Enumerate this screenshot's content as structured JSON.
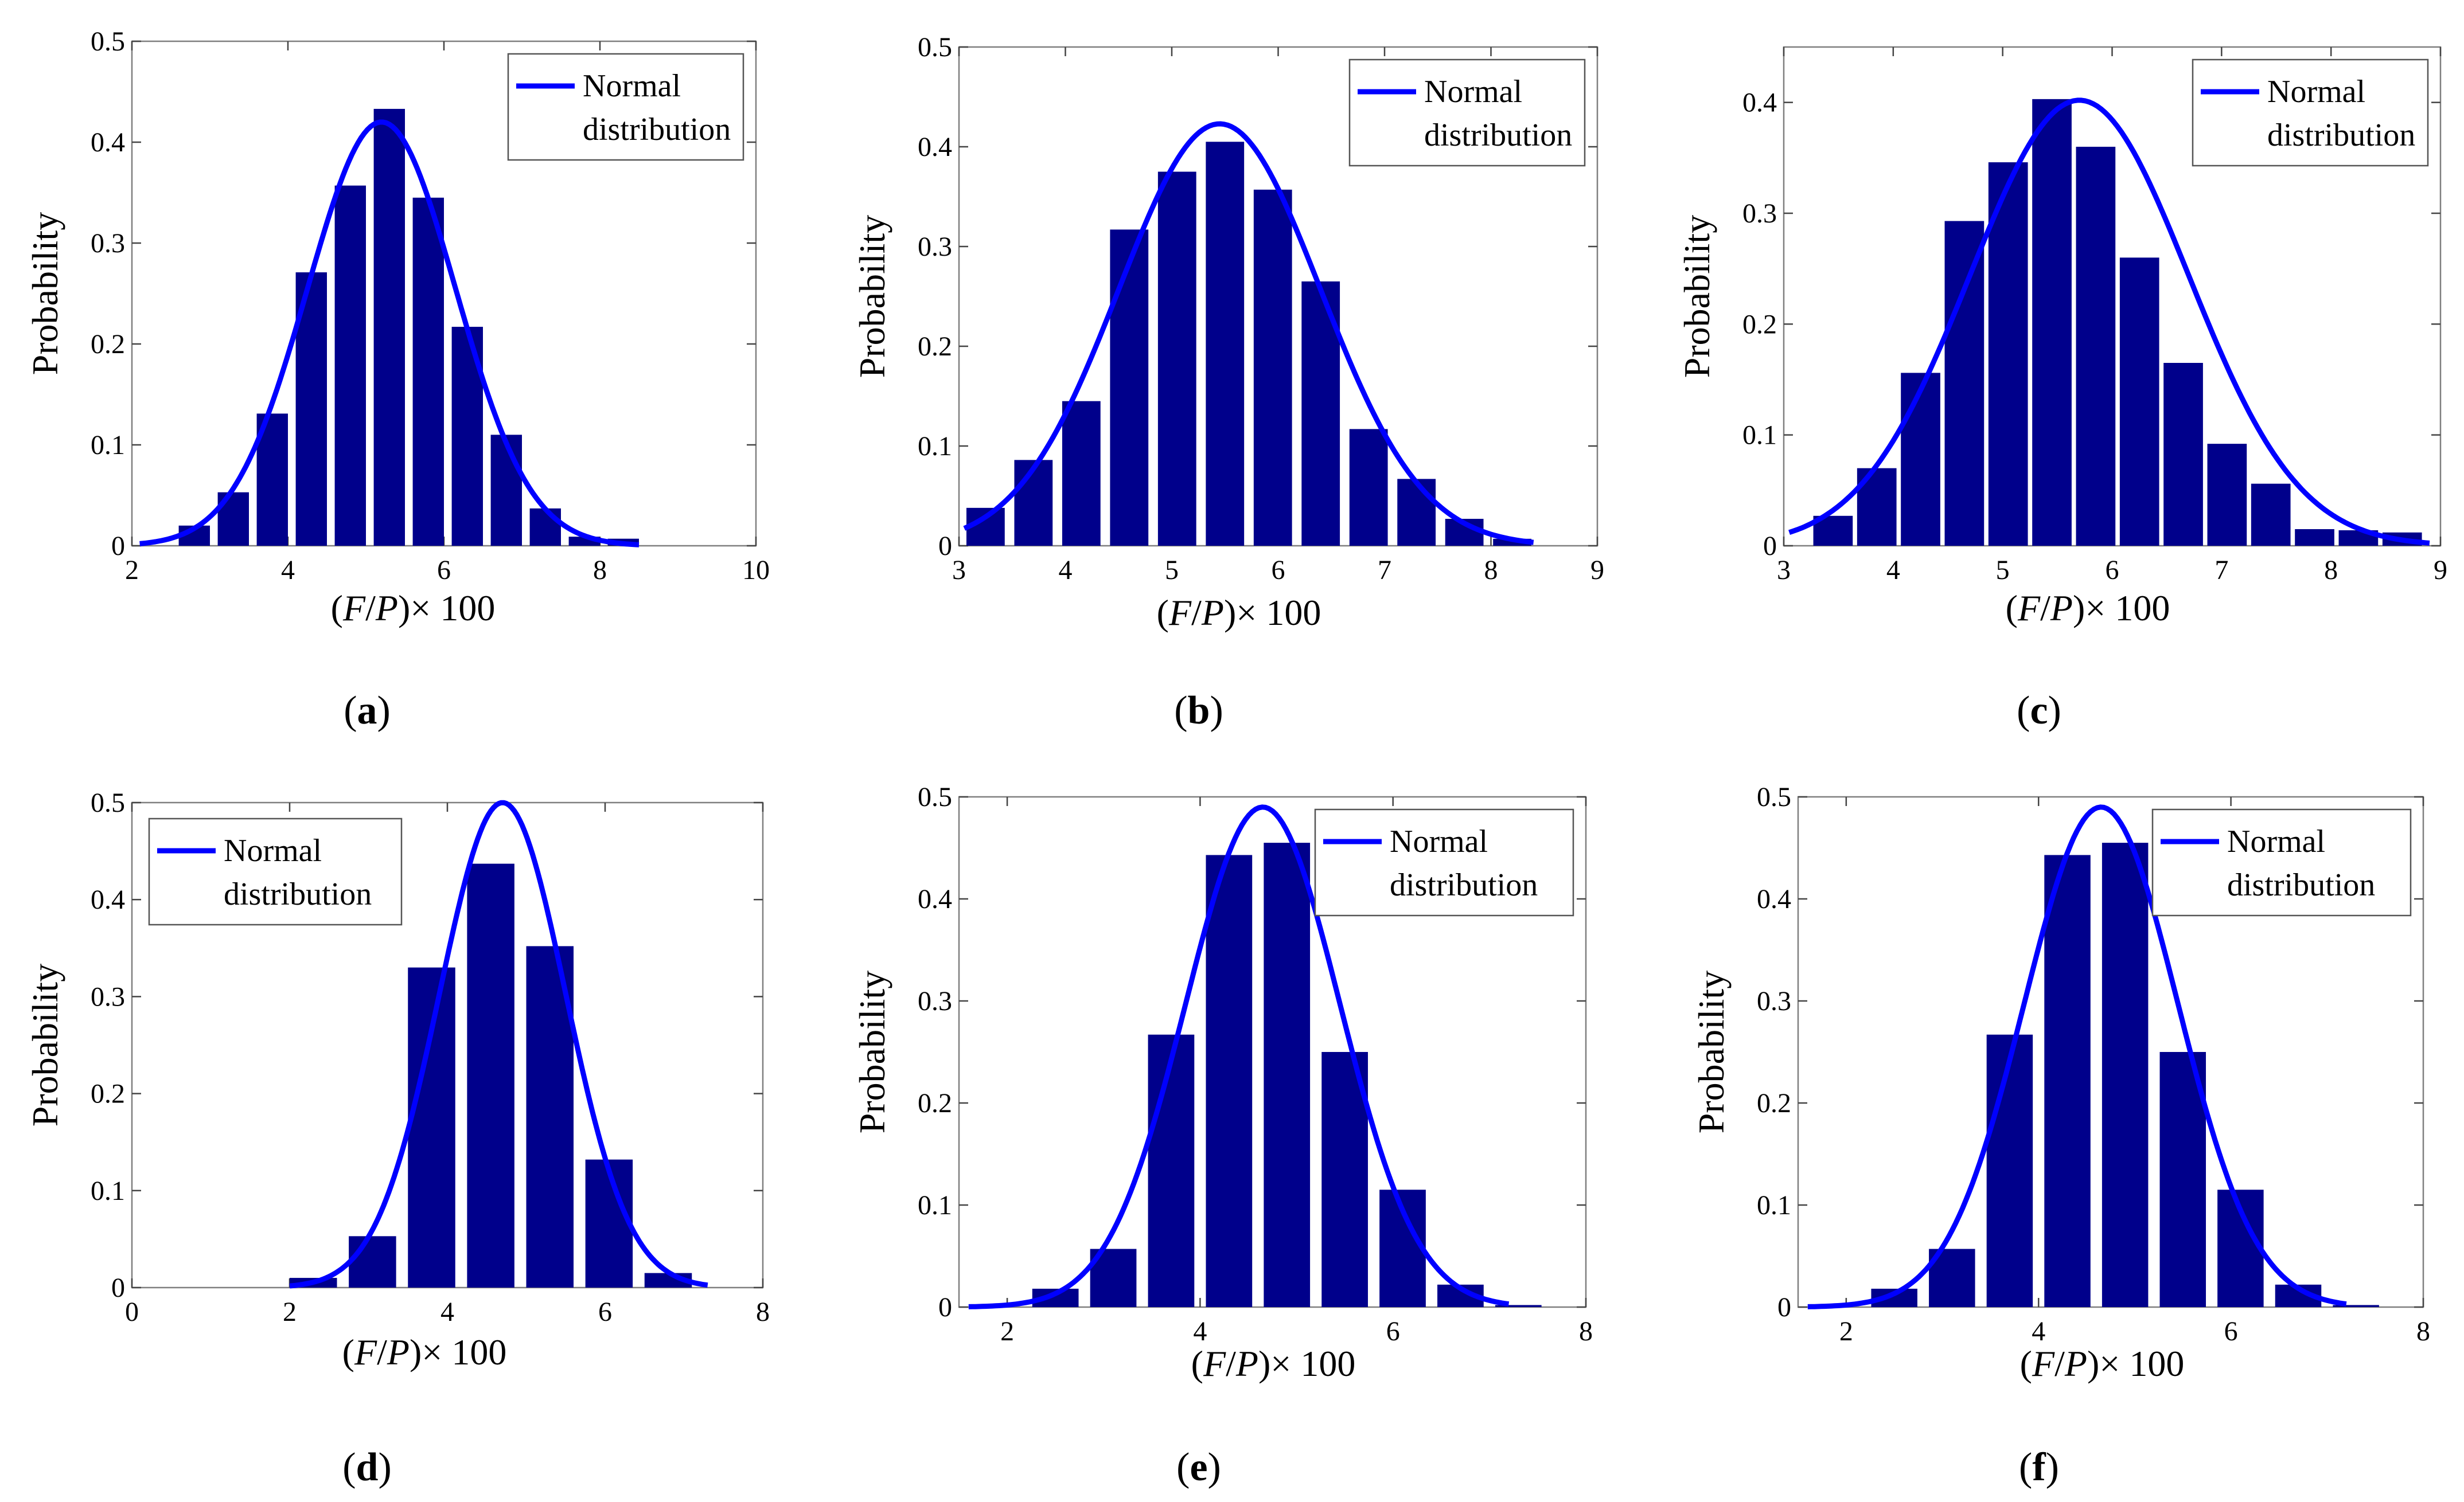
{
  "chart_data": [
    {
      "id": "a",
      "type": "bar",
      "panel_label": "a",
      "xlabel": "(F/P)× 100",
      "ylabel": "Probability",
      "xlim": [
        2,
        10
      ],
      "ylim": [
        0,
        0.5
      ],
      "xticks": [
        2,
        4,
        6,
        8,
        10
      ],
      "yticks": [
        0,
        0.1,
        0.2,
        0.3,
        0.4,
        0.5
      ],
      "legend": {
        "entries": [
          "Normal",
          "distribution"
        ],
        "position": "top-right"
      },
      "bar_width": 0.4,
      "series": [
        {
          "name": "histogram",
          "x": [
            2.8,
            3.3,
            3.8,
            4.3,
            4.8,
            5.3,
            5.8,
            6.3,
            6.8,
            7.3,
            7.8,
            8.3
          ],
          "values": [
            0.02,
            0.053,
            0.131,
            0.271,
            0.357,
            0.433,
            0.345,
            0.217,
            0.11,
            0.037,
            0.009,
            0.007
          ]
        },
        {
          "name": "Normal distribution",
          "kind": "normal",
          "mean": 5.2,
          "sd": 0.95,
          "scale": 0.42,
          "range": [
            2.1,
            8.5
          ]
        }
      ]
    },
    {
      "id": "b",
      "type": "bar",
      "panel_label": "b",
      "xlabel": "(F/P)× 100",
      "ylabel": "Probability",
      "xlim": [
        3,
        9
      ],
      "ylim": [
        0,
        0.5
      ],
      "xticks": [
        3,
        4,
        5,
        6,
        7,
        8,
        9
      ],
      "yticks": [
        0,
        0.1,
        0.2,
        0.3,
        0.4,
        0.5
      ],
      "legend": {
        "entries": [
          "Normal",
          "distribution"
        ],
        "position": "top-right"
      },
      "bar_width": 0.36,
      "series": [
        {
          "name": "histogram",
          "x": [
            3.25,
            3.7,
            4.15,
            4.6,
            5.05,
            5.5,
            5.95,
            6.4,
            6.85,
            7.3,
            7.75,
            8.2
          ],
          "values": [
            0.038,
            0.086,
            0.145,
            0.317,
            0.375,
            0.405,
            0.357,
            0.265,
            0.117,
            0.067,
            0.027,
            0.007
          ]
        },
        {
          "name": "Normal distribution",
          "kind": "normal",
          "mean": 5.45,
          "sd": 0.95,
          "scale": 0.423,
          "range": [
            3.05,
            8.4
          ]
        }
      ]
    },
    {
      "id": "c",
      "type": "bar",
      "panel_label": "c",
      "xlabel": "(F/P)× 100",
      "ylabel": "Probability",
      "xlim": [
        3,
        9
      ],
      "ylim": [
        0,
        0.45
      ],
      "xticks": [
        3,
        4,
        5,
        6,
        7,
        8,
        9
      ],
      "yticks": [
        0,
        0.1,
        0.2,
        0.3,
        0.4
      ],
      "legend": {
        "entries": [
          "Normal",
          "distribution"
        ],
        "position": "top-right"
      },
      "bar_width": 0.36,
      "series": [
        {
          "name": "histogram",
          "x": [
            3.45,
            3.85,
            4.25,
            4.65,
            5.05,
            5.45,
            5.85,
            6.25,
            6.65,
            7.05,
            7.45,
            7.85,
            8.25,
            8.65
          ],
          "values": [
            0.027,
            0.07,
            0.156,
            0.293,
            0.346,
            0.403,
            0.36,
            0.26,
            0.165,
            0.092,
            0.056,
            0.015,
            0.014,
            0.012
          ]
        },
        {
          "name": "Normal distribution",
          "kind": "normal",
          "mean": 5.7,
          "sd": 1.0,
          "scale": 0.402,
          "range": [
            3.05,
            8.9
          ]
        }
      ]
    },
    {
      "id": "d",
      "type": "bar",
      "panel_label": "d",
      "xlabel": "(F/P)× 100",
      "ylabel": "Probability",
      "xlim": [
        0,
        8
      ],
      "ylim": [
        0,
        0.5
      ],
      "xticks": [
        0,
        2,
        4,
        6,
        8
      ],
      "yticks": [
        0,
        0.1,
        0.2,
        0.3,
        0.4,
        0.5
      ],
      "legend": {
        "entries": [
          "Normal",
          "distribution"
        ],
        "position": "top-left"
      },
      "bar_width": 0.6,
      "series": [
        {
          "name": "histogram",
          "x": [
            2.3,
            3.05,
            3.8,
            4.55,
            5.3,
            6.05,
            6.8
          ],
          "values": [
            0.01,
            0.053,
            0.33,
            0.437,
            0.352,
            0.132,
            0.015
          ]
        },
        {
          "name": "Normal distribution",
          "kind": "normal",
          "mean": 4.7,
          "sd": 0.8,
          "scale": 0.5,
          "range": [
            2.0,
            7.3
          ]
        }
      ]
    },
    {
      "id": "e",
      "type": "bar",
      "panel_label": "e",
      "xlabel": "(F/P)× 100",
      "ylabel": "Probability",
      "xlim": [
        1.5,
        8
      ],
      "ylim": [
        0,
        0.5
      ],
      "xticks": [
        2,
        4,
        6,
        8
      ],
      "yticks": [
        0,
        0.1,
        0.2,
        0.3,
        0.4,
        0.5
      ],
      "legend": {
        "entries": [
          "Normal",
          "distribution"
        ],
        "position": "top-right"
      },
      "bar_width": 0.48,
      "series": [
        {
          "name": "histogram",
          "x": [
            2.5,
            3.1,
            3.7,
            4.3,
            4.9,
            5.5,
            6.1,
            6.7,
            7.3
          ],
          "values": [
            0.018,
            0.057,
            0.267,
            0.443,
            0.455,
            0.25,
            0.115,
            0.022,
            0.002
          ]
        },
        {
          "name": "Normal distribution",
          "kind": "normal",
          "mean": 4.65,
          "sd": 0.8,
          "scale": 0.49,
          "range": [
            1.6,
            7.2
          ]
        }
      ]
    },
    {
      "id": "f",
      "type": "bar",
      "panel_label": "f",
      "xlabel": "(F/P)× 100",
      "ylabel": "Probability",
      "xlim": [
        1.5,
        8
      ],
      "ylim": [
        0,
        0.5
      ],
      "xticks": [
        2,
        4,
        6,
        8
      ],
      "yticks": [
        0,
        0.1,
        0.2,
        0.3,
        0.4,
        0.5
      ],
      "legend": {
        "entries": [
          "Normal",
          "distribution"
        ],
        "position": "top-right"
      },
      "bar_width": 0.48,
      "series": [
        {
          "name": "histogram",
          "x": [
            2.5,
            3.1,
            3.7,
            4.3,
            4.9,
            5.5,
            6.1,
            6.7,
            7.3
          ],
          "values": [
            0.018,
            0.057,
            0.267,
            0.443,
            0.455,
            0.25,
            0.115,
            0.022,
            0.002
          ]
        },
        {
          "name": "Normal distribution",
          "kind": "normal",
          "mean": 4.65,
          "sd": 0.8,
          "scale": 0.49,
          "range": [
            1.6,
            7.2
          ]
        }
      ]
    }
  ]
}
